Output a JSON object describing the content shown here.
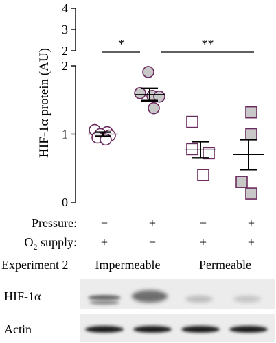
{
  "chart_data": {
    "type": "scatter",
    "ylabel": "HIF-1α protein (AU)",
    "upper_axis": {
      "ylim": [
        2,
        4
      ],
      "ticks": [
        "2",
        "3",
        "4"
      ]
    },
    "lower_axis": {
      "ylim": [
        0,
        2
      ],
      "ticks": [
        "0",
        "1",
        "2"
      ]
    },
    "significance": [
      {
        "label": "*",
        "from_group": 0,
        "to_group": 1
      },
      {
        "label": "**",
        "from_group": 1,
        "to_group": 3
      }
    ],
    "groups": [
      {
        "pressure": "−",
        "o2_supply": "+",
        "marker": "circle",
        "fill": "#ffffff",
        "points": [
          1.06,
          1.03,
          1.0,
          0.98,
          0.95,
          0.92
        ],
        "mean": 1.0,
        "error": 0.03
      },
      {
        "pressure": "+",
        "o2_supply": "−",
        "marker": "circle",
        "fill": "#c8c8c8",
        "points": [
          1.91,
          1.6,
          1.56,
          1.55,
          1.38
        ],
        "mean": 1.58,
        "error": 0.09
      },
      {
        "pressure": "−",
        "o2_supply": "+",
        "marker": "square",
        "fill": "#ffffff",
        "points": [
          1.18,
          0.78,
          0.72,
          0.4
        ],
        "mean": 0.77,
        "error": 0.12
      },
      {
        "pressure": "+",
        "o2_supply": "+",
        "marker": "square",
        "fill": "#c8c8c8",
        "points": [
          1.32,
          1.0,
          0.3,
          0.13
        ],
        "mean": 0.7,
        "error": 0.22
      }
    ]
  },
  "condition_rows": {
    "pressure_label": "Pressure:",
    "o2_label_main": "O",
    "o2_label_sub": "2",
    "o2_label_rest": " supply:"
  },
  "experiment": {
    "label": "Experiment 2",
    "impermeable": "Impermeable",
    "permeable": "Permeable"
  },
  "blots": {
    "hif_label": "HIF-1α",
    "actin_label": "Actin"
  },
  "colors": {
    "marker_stroke": "#6b2a5e",
    "marker_gray_fill": "#c8c8c8",
    "axis": "#000000"
  }
}
